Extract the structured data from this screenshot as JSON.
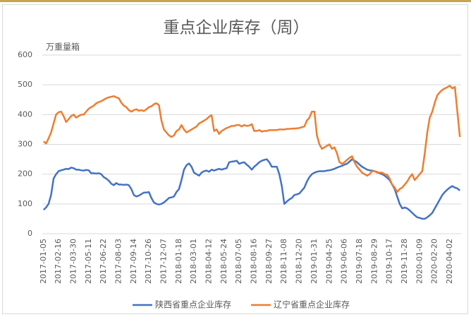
{
  "chart_data": {
    "type": "line",
    "title": "重点企业库存（周）",
    "y_label": "万重量箱",
    "categories": [
      "2017-01-05",
      null,
      null,
      null,
      null,
      null,
      "2017-02-16",
      null,
      null,
      null,
      null,
      null,
      "2017-03-30",
      null,
      null,
      null,
      null,
      null,
      "2017-05-11",
      null,
      null,
      null,
      null,
      null,
      "2017-06-22",
      null,
      null,
      null,
      null,
      null,
      "2017-08-03",
      null,
      null,
      null,
      null,
      null,
      "2017-09-14",
      null,
      null,
      null,
      null,
      null,
      "2017-10-26",
      null,
      null,
      null,
      null,
      null,
      "2017-12-07",
      null,
      null,
      null,
      null,
      null,
      "2018-01-18",
      null,
      null,
      null,
      null,
      null,
      "2018-03-01",
      null,
      null,
      null,
      null,
      null,
      "2018-04-12",
      null,
      null,
      null,
      null,
      null,
      "2018-05-24",
      null,
      null,
      null,
      null,
      null,
      "2018-07-05",
      null,
      null,
      null,
      null,
      null,
      "2018-08-16",
      null,
      null,
      null,
      null,
      null,
      "2018-09-27",
      null,
      null,
      null,
      null,
      null,
      "2018-11-08",
      null,
      null,
      null,
      null,
      null,
      "2018-12-20",
      null,
      null,
      null,
      null,
      null,
      "2019-01-31",
      null,
      null,
      null,
      null,
      null,
      "2019-04-25",
      null,
      null,
      null,
      null,
      null,
      "2019-06-06",
      null,
      null,
      null,
      null,
      null,
      "2019-07-18",
      null,
      null,
      null,
      null,
      null,
      "2019-08-29",
      null,
      null,
      null,
      null,
      null,
      "2019-10-17",
      null,
      null,
      null,
      null,
      null,
      "2019-11-28",
      null,
      null,
      null,
      null,
      null,
      "2020-01-09",
      null,
      null,
      null,
      null,
      null,
      "2020-02-20",
      null,
      null,
      null,
      null,
      null,
      "2020-04-02",
      null,
      null,
      null,
      null
    ],
    "series": [
      {
        "name": "陕西省重点企业库存",
        "color": "#4472c4",
        "values": [
          80,
          88,
          100,
          130,
          185,
          200,
          210,
          213,
          215,
          218,
          217,
          222,
          220,
          215,
          215,
          213,
          212,
          214,
          213,
          203,
          203,
          202,
          203,
          200,
          190,
          185,
          178,
          168,
          163,
          170,
          165,
          165,
          164,
          165,
          163,
          150,
          130,
          125,
          128,
          133,
          138,
          138,
          140,
          120,
          105,
          100,
          98,
          100,
          105,
          112,
          120,
          122,
          125,
          140,
          150,
          180,
          215,
          230,
          236,
          225,
          205,
          200,
          195,
          205,
          210,
          212,
          208,
          215,
          212,
          215,
          218,
          215,
          218,
          220,
          240,
          242,
          243,
          245,
          235,
          238,
          240,
          232,
          225,
          215,
          225,
          232,
          240,
          245,
          248,
          250,
          240,
          225,
          225,
          225,
          200,
          160,
          100,
          108,
          115,
          120,
          130,
          132,
          135,
          145,
          155,
          175,
          190,
          200,
          205,
          208,
          210,
          210,
          210,
          212,
          213,
          215,
          218,
          222,
          225,
          228,
          232,
          235,
          242,
          250,
          245,
          240,
          232,
          225,
          220,
          215,
          213,
          212,
          210,
          207,
          203,
          200,
          195,
          188,
          180,
          165,
          150,
          125,
          100,
          85,
          88,
          85,
          78,
          70,
          62,
          55,
          53,
          50,
          50,
          55,
          62,
          70,
          85,
          100,
          115,
          130,
          140,
          148,
          155,
          160,
          155,
          152,
          145
        ]
      },
      {
        "name": "辽宁省重点企业库存",
        "color": "#ed7d31",
        "values": [
          310,
          303,
          320,
          340,
          370,
          400,
          408,
          410,
          395,
          375,
          385,
          395,
          400,
          390,
          395,
          400,
          400,
          410,
          420,
          425,
          430,
          438,
          442,
          445,
          450,
          455,
          458,
          460,
          462,
          458,
          455,
          440,
          430,
          425,
          415,
          410,
          415,
          418,
          413,
          415,
          412,
          418,
          425,
          428,
          435,
          438,
          432,
          380,
          350,
          340,
          330,
          325,
          330,
          345,
          350,
          365,
          350,
          340,
          345,
          350,
          355,
          360,
          370,
          375,
          380,
          385,
          393,
          398,
          345,
          350,
          335,
          345,
          350,
          355,
          358,
          362,
          362,
          365,
          365,
          360,
          365,
          362,
          363,
          368,
          345,
          345,
          348,
          343,
          345,
          345,
          348,
          348,
          348,
          348,
          350,
          350,
          350,
          352,
          352,
          353,
          353,
          354,
          355,
          358,
          360,
          380,
          390,
          410,
          410,
          330,
          300,
          285,
          290,
          295,
          300,
          285,
          290,
          270,
          240,
          235,
          240,
          248,
          255,
          260,
          240,
          225,
          215,
          205,
          200,
          195,
          200,
          210,
          210,
          205,
          205,
          205,
          200,
          198,
          185,
          165,
          155,
          140,
          150,
          155,
          165,
          175,
          190,
          200,
          180,
          190,
          200,
          210,
          270,
          340,
          390,
          410,
          440,
          465,
          475,
          483,
          488,
          492,
          497,
          488,
          493,
          410,
          325
        ]
      }
    ],
    "ylim": [
      0,
      600
    ],
    "yticks": [
      0,
      100,
      200,
      300,
      400,
      500,
      600
    ],
    "grid": true,
    "legend": "bottom"
  }
}
